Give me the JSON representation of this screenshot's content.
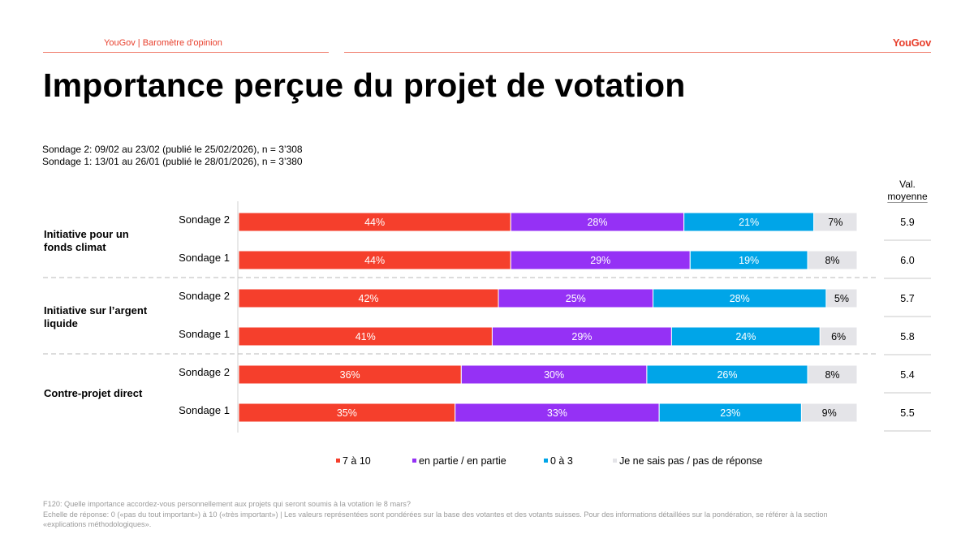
{
  "header": {
    "source": "YouGov | Baromètre d'opinion",
    "logo": "YouGov"
  },
  "title": "Importance perçue du projet de votation",
  "samples": [
    "Sondage 2: 09/02 au 23/02 (publié le 25/02/2026), n = 3’308",
    "Sondage 1: 13/01 au 26/01 (publié le 28/01/2026), n = 3’380"
  ],
  "mean_header_1": "Val.",
  "mean_header_2": "moyenne",
  "colors": {
    "high": "#f53f2c",
    "mid": "#9531f5",
    "low": "#00a5e8",
    "dk": "#e4e4e8",
    "accent": "#e8402d"
  },
  "legend": [
    "7 à 10",
    "en partie / en partie",
    "0 à 3",
    "Je ne sais pas / pas de réponse"
  ],
  "footnote": {
    "line1": "F120: Quelle importance accordez-vous personnellement aux projets qui seront soumis  à la votation le 8 mars?",
    "line2": "Echelle de réponse: 0 («pas du tout important») à 10 («très important») | Les valeurs représentées sont pondérées sur la base des votantes et des votants suisses. Pour des informations détaillées sur la pondération, se référer à la section",
    "line3": "«explications méthodologiques»."
  },
  "chart_data": {
    "type": "bar",
    "orientation": "horizontal",
    "stacked": true,
    "title": "Importance perçue du projet de votation",
    "xlim": [
      0,
      100
    ],
    "series_names": [
      "7 à 10",
      "en partie / en partie",
      "0 à 3",
      "Je ne sais pas / pas de réponse"
    ],
    "groups": [
      {
        "label": "Initiative pour un fonds climat",
        "label_lines": [
          "Initiative pour un",
          "fonds climat"
        ],
        "rows": [
          {
            "label": "Sondage 2",
            "values": [
              44,
              28,
              21,
              7
            ],
            "mean": "5.9"
          },
          {
            "label": "Sondage 1",
            "values": [
              44,
              29,
              19,
              8
            ],
            "mean": "6.0"
          }
        ]
      },
      {
        "label": "Initiative sur l’argent liquide",
        "label_lines": [
          "Initiative sur l’argent",
          "liquide"
        ],
        "rows": [
          {
            "label": "Sondage 2",
            "values": [
              42,
              25,
              28,
              5
            ],
            "mean": "5.7"
          },
          {
            "label": "Sondage 1",
            "values": [
              41,
              29,
              24,
              6
            ],
            "mean": "5.8"
          }
        ]
      },
      {
        "label": "Contre-projet direct",
        "label_lines": [
          "Contre-projet direct"
        ],
        "rows": [
          {
            "label": "Sondage 2",
            "values": [
              36,
              30,
              26,
              8
            ],
            "mean": "5.4"
          },
          {
            "label": "Sondage 1",
            "values": [
              35,
              33,
              23,
              9
            ],
            "mean": "5.5"
          }
        ]
      }
    ]
  }
}
